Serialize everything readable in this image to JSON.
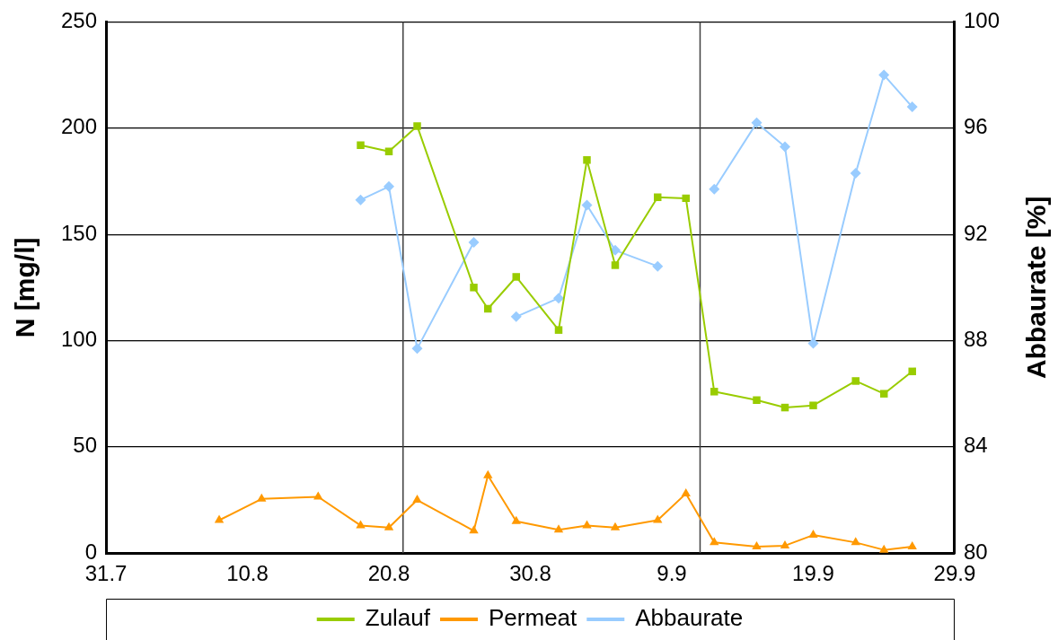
{
  "chart_data": {
    "type": "line",
    "xlabel": null,
    "ylabel": "N [mg/l]",
    "y2label": "Abbaurate [%]",
    "xlim": [
      "--07-31",
      "--09-29"
    ],
    "xticks": [
      {
        "value": "--07-31",
        "label": "31.7"
      },
      {
        "value": "--08-10",
        "label": "10.8"
      },
      {
        "value": "--08-20",
        "label": "20.8"
      },
      {
        "value": "--08-30",
        "label": "30.8"
      },
      {
        "value": "--09-09",
        "label": "9.9"
      },
      {
        "value": "--09-19",
        "label": "19.9"
      },
      {
        "value": "--09-29",
        "label": "29.9"
      }
    ],
    "ylim": [
      0,
      250
    ],
    "yticks": [
      0,
      50,
      100,
      150,
      200,
      250
    ],
    "y2lim": [
      80,
      100
    ],
    "y2ticks": [
      80,
      84,
      88,
      92,
      96,
      100
    ],
    "grid": "y",
    "legend": "bottom",
    "line_style": "solid",
    "ref_lines": [
      {
        "axis": "x",
        "value": "--08-21",
        "color": "#404040"
      },
      {
        "axis": "x",
        "value": "--09-11",
        "color": "#404040"
      }
    ],
    "series": [
      {
        "name": "Zulauf",
        "color": "#99cc00",
        "marker": "square",
        "x": [
          "--08-18",
          "--08-20",
          "--08-22",
          "--08-26",
          "--08-27",
          "--08-29",
          "--09-01",
          "--09-03",
          "--09-05",
          "--09-08",
          "--09-10",
          "--09-12",
          "--09-15",
          "--09-17",
          "--09-19",
          "--09-22",
          "--09-24",
          "--09-26"
        ],
        "values": [
          192,
          189,
          201,
          125,
          115,
          130,
          105,
          185,
          135.5,
          167.5,
          167,
          76,
          72,
          68.5,
          69.5,
          81,
          75,
          85.5
        ]
      },
      {
        "name": "Permeat",
        "color": "#ff9900",
        "marker": "triangle",
        "x": [
          "--08-08",
          "--08-11",
          "--08-15",
          "--08-18",
          "--08-20",
          "--08-22",
          "--08-26",
          "--08-27",
          "--08-29",
          "--09-01",
          "--09-03",
          "--09-05",
          "--09-08",
          "--09-10",
          "--09-12",
          "--09-15",
          "--09-17",
          "--09-19",
          "--09-22",
          "--09-24",
          "--09-26"
        ],
        "values": [
          15.5,
          25.5,
          26.5,
          13,
          12,
          25,
          10.5,
          36.5,
          15,
          11,
          13,
          12,
          15.5,
          28,
          5,
          3,
          3.5,
          8.5,
          5,
          1.5,
          3
        ]
      },
      {
        "name": "Abbaurate",
        "color": "#99ccff",
        "marker": "diamond",
        "axis": "y2",
        "x": [
          "--08-18",
          "--08-20",
          "--08-22",
          "--08-26",
          "--08-27",
          "--08-29",
          "--09-01",
          "--09-03",
          "--09-05",
          "--09-08",
          "--09-10",
          "--09-12",
          "--09-15",
          "--09-17",
          "--09-19",
          "--09-22",
          "--09-24",
          "--09-26"
        ],
        "values": [
          93.3,
          93.8,
          87.7,
          91.7,
          null,
          88.9,
          89.6,
          93.1,
          91.4,
          90.8,
          null,
          93.7,
          96.2,
          95.3,
          87.9,
          94.3,
          98,
          96.8
        ]
      }
    ]
  }
}
